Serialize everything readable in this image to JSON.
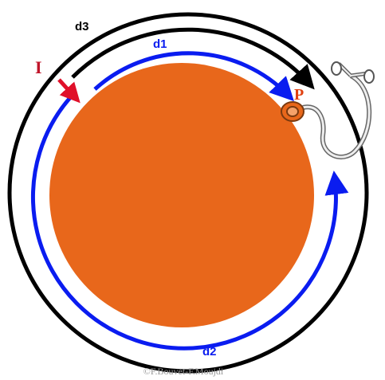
{
  "labels": {
    "d3": "d3",
    "d1": "d1",
    "I": "I",
    "P": "P",
    "d2": "d2"
  },
  "credit": "©F.Bouvet-F.Moujdi"
}
